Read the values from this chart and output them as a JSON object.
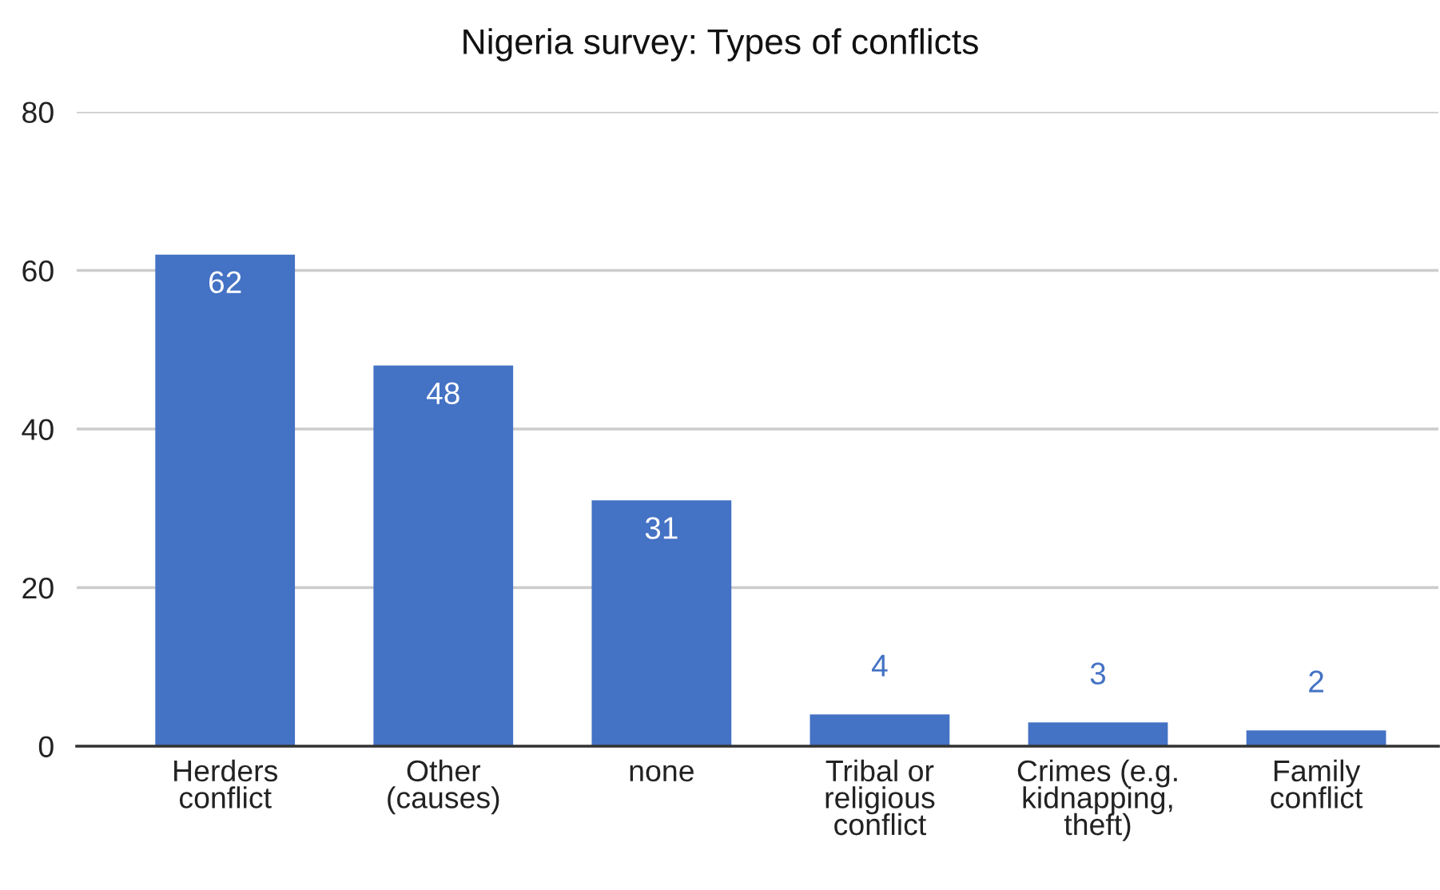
{
  "chart_data": {
    "type": "bar",
    "title": "Nigeria survey: Types of conflicts",
    "categories": [
      "Herders\nconflict",
      "Other\n(causes)",
      "none",
      "Tribal or\nreligious\nconflict",
      "Crimes (e.g.\nkidnapping,\ntheft)",
      "Family\nconflict"
    ],
    "values": [
      62,
      48,
      31,
      4,
      3,
      2
    ],
    "color": "#4472c4",
    "ylim": [
      0,
      80
    ],
    "yticks": [
      0,
      20,
      40,
      60,
      80
    ],
    "grid": "y",
    "data_labels": true
  }
}
